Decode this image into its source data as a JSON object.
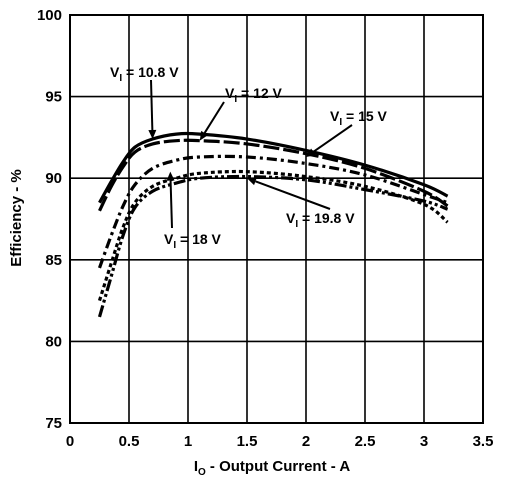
{
  "chart_data": {
    "type": "line",
    "xlabel": {
      "main": "I",
      "sub": "O",
      "rest": " - Output Current - A"
    },
    "ylabel": "Efficiency - %",
    "xlim": [
      0,
      3.5
    ],
    "ylim": [
      75,
      100
    ],
    "xticks": [
      0,
      0.5,
      1,
      1.5,
      2,
      2.5,
      3,
      3.5
    ],
    "xtick_labels": [
      "0",
      "0.5",
      "1",
      "1.5",
      "2",
      "2.5",
      "3",
      "3.5"
    ],
    "yticks": [
      75,
      80,
      85,
      90,
      95,
      100
    ],
    "ytick_labels": [
      "75",
      "80",
      "85",
      "90",
      "95",
      "100"
    ],
    "grid": true,
    "series": [
      {
        "name": "VI = 10.8 V",
        "style": "solid",
        "x": [
          0.25,
          0.35,
          0.45,
          0.55,
          0.7,
          0.9,
          1.1,
          1.5,
          2.0,
          2.5,
          3.0,
          3.2
        ],
        "y": [
          88.5,
          89.8,
          91.0,
          91.9,
          92.4,
          92.7,
          92.7,
          92.4,
          91.7,
          90.8,
          89.6,
          88.9
        ]
      },
      {
        "name": "VI = 12 V",
        "style": "longdash",
        "x": [
          0.25,
          0.35,
          0.45,
          0.55,
          0.7,
          0.9,
          1.1,
          1.5,
          2.0,
          2.5,
          3.0,
          3.2
        ],
        "y": [
          88.0,
          89.5,
          90.7,
          91.6,
          92.1,
          92.3,
          92.3,
          92.1,
          91.5,
          90.6,
          89.2,
          88.3
        ]
      },
      {
        "name": "VI = 15 V",
        "style": "dashdot",
        "x": [
          0.25,
          0.35,
          0.45,
          0.55,
          0.7,
          0.9,
          1.1,
          1.5,
          2.0,
          2.5,
          3.0,
          3.2
        ],
        "y": [
          84.5,
          86.5,
          88.3,
          89.6,
          90.6,
          91.1,
          91.3,
          91.3,
          90.9,
          90.2,
          89.0,
          88.5
        ]
      },
      {
        "name": "VI = 18 V",
        "style": "dotted",
        "x": [
          0.25,
          0.35,
          0.45,
          0.55,
          0.7,
          0.9,
          1.1,
          1.5,
          2.0,
          2.5,
          3.0,
          3.2
        ],
        "y": [
          82.5,
          84.8,
          87.0,
          88.5,
          89.5,
          90.0,
          90.3,
          90.4,
          90.1,
          89.5,
          88.4,
          87.3
        ]
      },
      {
        "name": "VI = 19.8 V",
        "style": "dashdotdot",
        "x": [
          0.25,
          0.35,
          0.45,
          0.55,
          0.7,
          0.9,
          1.1,
          1.5,
          2.0,
          2.5,
          3.0,
          3.2
        ],
        "y": [
          81.5,
          84.0,
          86.5,
          88.2,
          89.2,
          89.7,
          90.0,
          90.1,
          89.9,
          89.3,
          88.6,
          88.1
        ]
      }
    ],
    "annotations": [
      {
        "main": "V",
        "sub": "I",
        "rest": " = 10.8 V",
        "arrow_to": [
          0.7,
          92.4
        ]
      },
      {
        "main": "V",
        "sub": "I",
        "rest": " = 12 V",
        "arrow_to": [
          1.1,
          92.3
        ]
      },
      {
        "main": "V",
        "sub": "I",
        "rest": " = 15 V",
        "arrow_to": [
          2.0,
          91.3
        ]
      },
      {
        "main": "V",
        "sub": "I",
        "rest": " = 18 V",
        "arrow_to": [
          0.85,
          90.4
        ]
      },
      {
        "main": "V",
        "sub": "I",
        "rest": " = 19.8 V",
        "arrow_to": [
          1.5,
          90.0
        ]
      }
    ]
  }
}
